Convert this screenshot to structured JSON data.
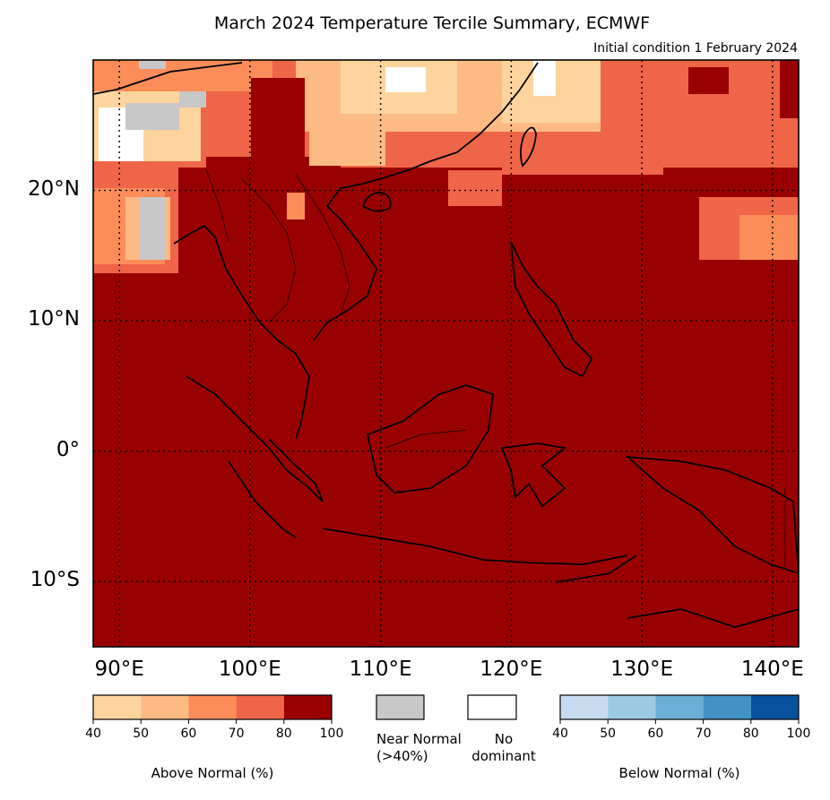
{
  "header": {
    "title": "March 2024 Temperature Tercile Summary, ECMWF",
    "subtitle": "Initial condition 1 February 2024"
  },
  "map": {
    "lon_range": [
      88,
      142
    ],
    "lat_range": [
      -15,
      30
    ],
    "lat_ticks": [
      {
        "value": 20,
        "label": "20°N"
      },
      {
        "value": 10,
        "label": "10°N"
      },
      {
        "value": 0,
        "label": "0°"
      },
      {
        "value": -10,
        "label": "10°S"
      }
    ],
    "lon_ticks": [
      {
        "value": 90,
        "label": "90°E"
      },
      {
        "value": 100,
        "label": "100°E"
      },
      {
        "value": 110,
        "label": "110°E"
      },
      {
        "value": 120,
        "label": "120°E"
      },
      {
        "value": 130,
        "label": "130°E"
      },
      {
        "value": 140,
        "label": "140°E"
      }
    ],
    "dominant_category": "Above Normal 80-100%",
    "gridlines": "dotted"
  },
  "legend": {
    "above": {
      "caption": "Above Normal (%)",
      "colors": [
        "#fdd49e",
        "#fdbb84",
        "#fc8d59",
        "#ef6548",
        "#990000"
      ],
      "ticks": [
        "40",
        "50",
        "60",
        "70",
        "80",
        "100"
      ]
    },
    "near_normal": {
      "label_line1": "Near Normal",
      "label_line2": "(>40%)",
      "color": "#c8c8c8"
    },
    "no_dominant": {
      "label_line1": "No",
      "label_line2": "dominant",
      "color": "#ffffff"
    },
    "below": {
      "caption": "Below Normal (%)",
      "colors": [
        "#c6dbef",
        "#9ecae1",
        "#6baed6",
        "#4292c6",
        "#08519c"
      ],
      "ticks": [
        "40",
        "50",
        "60",
        "70",
        "80",
        "100"
      ]
    }
  },
  "colors": {
    "above_80_100": "#990000",
    "above_70_80": "#ef6548",
    "above_60_70": "#fc8d59",
    "above_50_60": "#fdbb84",
    "above_40_50": "#fdd49e",
    "near_normal": "#c8c8c8"
  }
}
